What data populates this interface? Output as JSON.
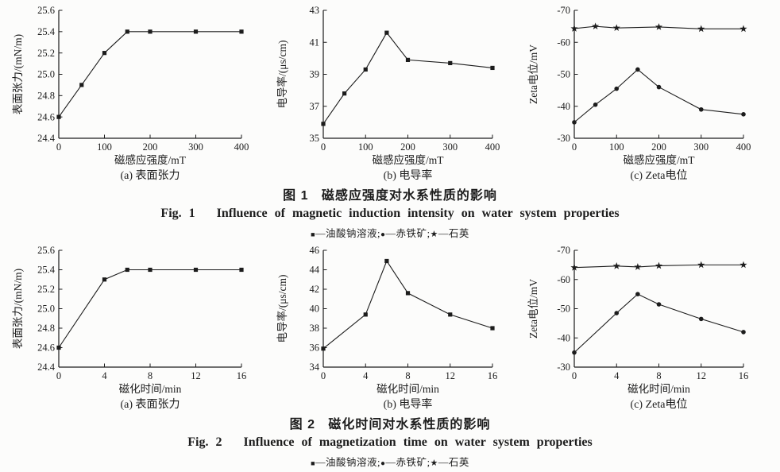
{
  "colors": {
    "ink": "#1c1c1c",
    "background": "#fcfcfb"
  },
  "figure1": {
    "caption_cn": "图 1   磁感应强度对水系性质的影响",
    "caption_en": "Fig. 1   Influence of magnetic induction intensity on water system properties",
    "legend": {
      "dash": "—",
      "separator": ";",
      "items": [
        {
          "marker": "square",
          "label": "油酸钠溶液"
        },
        {
          "marker": "circle",
          "label": "赤铁矿"
        },
        {
          "marker": "star",
          "label": "石英"
        }
      ]
    }
  },
  "figure2": {
    "caption_cn": "图 2   磁化时间对水系性质的影响",
    "caption_en": "Fig. 2   Influence of magnetization time on water system properties",
    "legend": {
      "dash": "—",
      "separator": ";",
      "items": [
        {
          "marker": "square",
          "label": "油酸钠溶液"
        },
        {
          "marker": "circle",
          "label": "赤铁矿"
        },
        {
          "marker": "star",
          "label": "石英"
        }
      ]
    }
  },
  "chart_data": [
    {
      "id": "fig1a",
      "type": "line",
      "subcaption": "(a) 表面张力",
      "xlabel": "磁感应强度/mT",
      "ylabel": "表面张力/(mN/m)",
      "xlim": [
        0,
        400
      ],
      "ylim": [
        24.4,
        25.6
      ],
      "xticks": [
        "0",
        "100",
        "200",
        "300",
        "400"
      ],
      "yticks": [
        "24.4",
        "24.6",
        "24.8",
        "25.0",
        "25.2",
        "25.4",
        "25.6"
      ],
      "grid": false,
      "legend_position": "below-figure",
      "series": [
        {
          "name": "油酸钠溶液",
          "marker": "square",
          "x": [
            0,
            50,
            100,
            150,
            200,
            300,
            400
          ],
          "y": [
            24.6,
            24.9,
            25.2,
            25.4,
            25.4,
            25.4,
            25.4
          ]
        }
      ]
    },
    {
      "id": "fig1b",
      "type": "line",
      "subcaption": "(b) 电导率",
      "xlabel": "磁感应强度/mT",
      "ylabel": "电导率/(μs/cm)",
      "xlim": [
        0,
        400
      ],
      "ylim": [
        35,
        43
      ],
      "xticks": [
        "0",
        "100",
        "200",
        "300",
        "400"
      ],
      "yticks": [
        "35",
        "37",
        "39",
        "41",
        "43"
      ],
      "grid": false,
      "legend_position": "below-figure",
      "series": [
        {
          "name": "油酸钠溶液",
          "marker": "square",
          "x": [
            0,
            50,
            100,
            150,
            200,
            300,
            400
          ],
          "y": [
            35.9,
            37.8,
            39.3,
            41.6,
            39.9,
            39.7,
            39.4
          ]
        }
      ]
    },
    {
      "id": "fig1c",
      "type": "line",
      "subcaption": "(c) Zeta电位",
      "xlabel": "磁感应强度/mT",
      "ylabel": "Zeta电位/mV",
      "xlim": [
        0,
        400
      ],
      "ylim": [
        -30,
        -70
      ],
      "xticks": [
        "0",
        "100",
        "200",
        "300",
        "400"
      ],
      "yticks": [
        "-30",
        "-40",
        "-50",
        "-60",
        "-70"
      ],
      "grid": false,
      "legend_position": "below-figure",
      "series": [
        {
          "name": "赤铁矿",
          "marker": "circle",
          "x": [
            0,
            50,
            100,
            150,
            200,
            300,
            400
          ],
          "y": [
            -35,
            -40.5,
            -45.5,
            -51.5,
            -46,
            -39,
            -37.5
          ]
        },
        {
          "name": "石英",
          "marker": "star",
          "x": [
            0,
            50,
            100,
            200,
            300,
            400
          ],
          "y": [
            -64.3,
            -65,
            -64.5,
            -64.8,
            -64.2,
            -64.2
          ]
        }
      ]
    },
    {
      "id": "fig2a",
      "type": "line",
      "subcaption": "(a) 表面张力",
      "xlabel": "磁化时间/min",
      "ylabel": "表面张力/(mN/m)",
      "xlim": [
        0,
        16
      ],
      "ylim": [
        24.4,
        25.6
      ],
      "xticks": [
        "0",
        "4",
        "8",
        "12",
        "16"
      ],
      "yticks": [
        "24.4",
        "24.6",
        "24.8",
        "25.0",
        "25.2",
        "25.4",
        "25.6"
      ],
      "grid": false,
      "legend_position": "below-figure",
      "series": [
        {
          "name": "油酸钠溶液",
          "marker": "square",
          "x": [
            0,
            4,
            6,
            8,
            12,
            16
          ],
          "y": [
            24.6,
            25.3,
            25.4,
            25.4,
            25.4,
            25.4
          ]
        }
      ]
    },
    {
      "id": "fig2b",
      "type": "line",
      "subcaption": "(b) 电导率",
      "xlabel": "磁化时间/min",
      "ylabel": "电导率/(μs/cm)",
      "xlim": [
        0,
        16
      ],
      "ylim": [
        34,
        46
      ],
      "xticks": [
        "0",
        "4",
        "8",
        "12",
        "16"
      ],
      "yticks": [
        "34",
        "36",
        "38",
        "40",
        "42",
        "44",
        "46"
      ],
      "grid": false,
      "legend_position": "below-figure",
      "series": [
        {
          "name": "油酸钠溶液",
          "marker": "square",
          "x": [
            0,
            4,
            6,
            8,
            12,
            16
          ],
          "y": [
            35.9,
            39.4,
            44.9,
            41.6,
            39.4,
            38.0
          ]
        }
      ]
    },
    {
      "id": "fig2c",
      "type": "line",
      "subcaption": "(c) Zeta电位",
      "xlabel": "磁化时间/min",
      "ylabel": "Zeta电位/mV",
      "xlim": [
        0,
        16
      ],
      "ylim": [
        -30,
        -70
      ],
      "xticks": [
        "0",
        "4",
        "8",
        "12",
        "16"
      ],
      "yticks": [
        "-30",
        "-40",
        "-50",
        "-60",
        "-70"
      ],
      "grid": false,
      "legend_position": "below-figure",
      "series": [
        {
          "name": "赤铁矿",
          "marker": "circle",
          "x": [
            0,
            4,
            6,
            8,
            12,
            16
          ],
          "y": [
            -35,
            -48.5,
            -55,
            -51.5,
            -46.5,
            -42
          ]
        },
        {
          "name": "石英",
          "marker": "star",
          "x": [
            0,
            4,
            6,
            8,
            12,
            16
          ],
          "y": [
            -64.1,
            -64.6,
            -64.3,
            -64.7,
            -65,
            -65
          ]
        }
      ]
    }
  ]
}
